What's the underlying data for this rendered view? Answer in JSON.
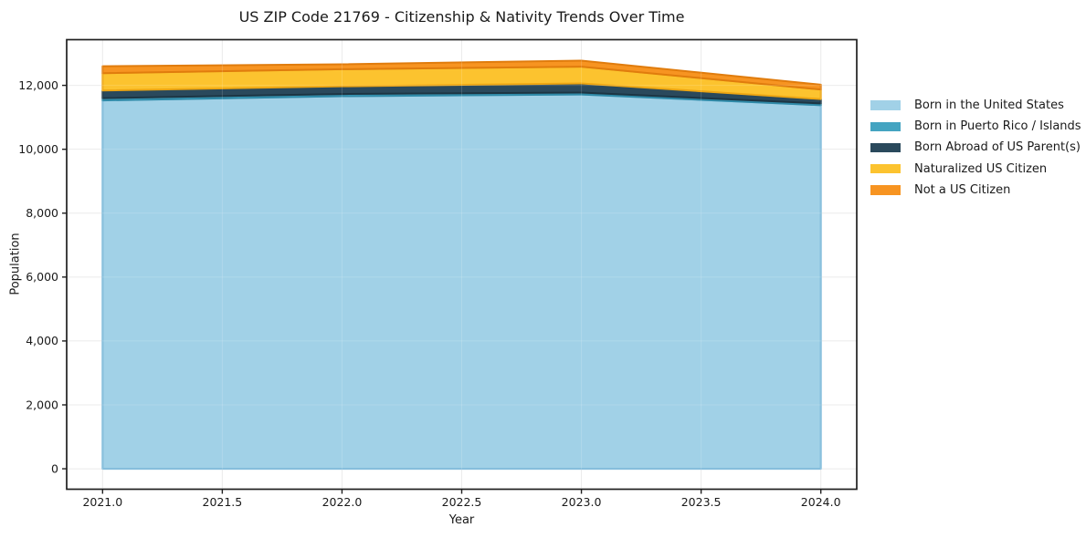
{
  "chart_data": {
    "type": "area",
    "stacked": true,
    "title": "US ZIP Code 21769 - Citizenship & Nativity Trends Over Time",
    "xlabel": "Year",
    "ylabel": "Population",
    "x": [
      2021,
      2022,
      2023,
      2024
    ],
    "series": [
      {
        "name": "Born in the United States",
        "color": "#a1d1e7",
        "edge_color": "#79b7d8",
        "values": [
          11530,
          11660,
          11715,
          11380
        ]
      },
      {
        "name": "Born in Puerto Rico / Islands",
        "color": "#44a4c1",
        "edge_color": "#2f8aa8",
        "values": [
          70,
          70,
          60,
          55
        ]
      },
      {
        "name": "Born Abroad of US Parent(s)",
        "color": "#2a495c",
        "edge_color": "#1d3543",
        "values": [
          240,
          240,
          285,
          135
        ]
      },
      {
        "name": "Naturalized US Citizen",
        "color": "#fcc32f",
        "edge_color": "#eda613",
        "values": [
          540,
          535,
          525,
          300
        ]
      },
      {
        "name": "Not a US Citizen",
        "color": "#f79421",
        "edge_color": "#e07c0d",
        "values": [
          220,
          155,
          190,
          150
        ]
      }
    ],
    "totals": [
      12600,
      12660,
      12775,
      12020
    ],
    "xlim": [
      2020.85,
      2024.15
    ],
    "ylim": [
      -640,
      13430
    ],
    "xticks": {
      "values": [
        2021,
        2021.5,
        2022,
        2022.5,
        2023,
        2023.5,
        2024
      ],
      "labels": [
        "2021.0",
        "2021.5",
        "2022.0",
        "2022.5",
        "2023.0",
        "2023.5",
        "2024.0"
      ]
    },
    "yticks": {
      "values": [
        0,
        2000,
        4000,
        6000,
        8000,
        10000,
        12000
      ],
      "labels": [
        "0",
        "2,000",
        "4,000",
        "6,000",
        "8,000",
        "10,000",
        "12,000"
      ]
    },
    "grid": true,
    "legend_position": "right-outside",
    "colors": {
      "grid": "#e8e8e8",
      "spine": "#1f1f1f",
      "text": "#1a1a1a",
      "background": "#ffffff"
    }
  }
}
